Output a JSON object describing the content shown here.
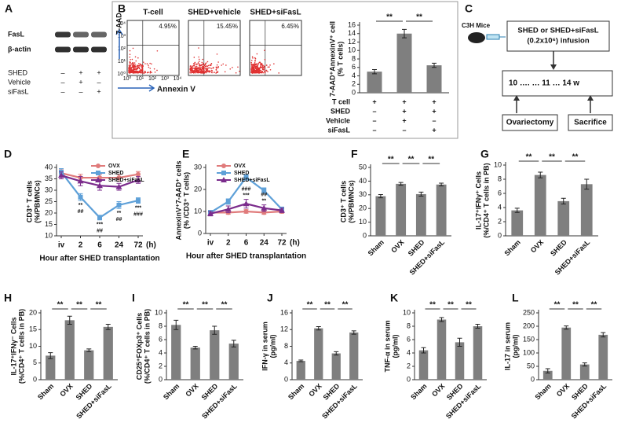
{
  "blot": {
    "panel": "A",
    "bands": [
      "FasL",
      "β-actin"
    ],
    "conditions": [
      {
        "name": "SHED",
        "signs": [
          "–",
          "+",
          "+"
        ]
      },
      {
        "name": "Vehicle",
        "signs": [
          "–",
          "+",
          "–"
        ]
      },
      {
        "name": "siFasL",
        "signs": [
          "–",
          "–",
          "+"
        ]
      }
    ]
  },
  "flow": {
    "panel": "B",
    "ylabel": "7-AAD",
    "xlabel": "Annexin V",
    "ticks": [
      "10⁰",
      "10¹",
      "10²",
      "10³",
      "10⁴"
    ],
    "plots": [
      {
        "title": "T-cell",
        "percent": "4.95%"
      },
      {
        "title": "SHED+vehicle",
        "percent": "15.45%"
      },
      {
        "title": "SHED+siFasL",
        "percent": "6.45%"
      }
    ]
  },
  "diagram": {
    "panel": "C",
    "mouse": "C3H Mice",
    "infusion": [
      "SHED or SHED+siFasL",
      "(0.2x10⁶) infusion"
    ],
    "timeline": "10 …. … 11 … 14 w",
    "events": [
      "Ovariectomy",
      "Sacrifice"
    ]
  },
  "chart_data": [
    {
      "type": "bar",
      "ylabel": [
        "7-AAD⁺AnnexinV⁺ cell",
        "(% T cells)"
      ],
      "values": [
        5,
        14,
        6.5
      ],
      "errors": [
        0.5,
        1,
        0.5
      ],
      "color": "#7f7f7f",
      "ylim": [
        0,
        16
      ],
      "yticks": [
        0,
        2,
        4,
        6,
        8,
        10,
        12,
        14,
        16
      ],
      "significance": [
        "**",
        "**"
      ],
      "conditions": [
        {
          "name": "T cell",
          "signs": [
            "+",
            "+",
            "+"
          ]
        },
        {
          "name": "SHED",
          "signs": [
            "–",
            "+",
            "+"
          ]
        },
        {
          "name": "Vehicle",
          "signs": [
            "–",
            "+",
            "–"
          ]
        },
        {
          "name": "siFasL",
          "signs": [
            "–",
            "–",
            "+"
          ]
        }
      ]
    },
    {
      "type": "line",
      "panel": "D",
      "ylabel": [
        "CD3⁺ T cells",
        "(%/PBMNCs)"
      ],
      "xlabel": "Hour after SHED transplantation",
      "xunit": "(h)",
      "categories": [
        "iv",
        "2",
        "6",
        "24",
        "72"
      ],
      "ylim": [
        10,
        40
      ],
      "yticks": [
        10,
        15,
        20,
        25,
        30,
        35,
        40
      ],
      "legend": "upper right",
      "point_label_side": "below",
      "series": [
        {
          "name": "OVX",
          "color": "#e07b7b",
          "marker": "circle",
          "values": [
            37.5,
            35.5,
            35.5,
            35.5,
            37
          ],
          "errors": [
            1.5,
            1.5,
            1.5,
            1.5,
            1.2
          ]
        },
        {
          "name": "SHED",
          "color": "#5ea0d8",
          "marker": "square",
          "values": [
            38,
            27,
            18,
            23.5,
            25.5
          ],
          "errors": [
            1.5,
            1.5,
            1,
            1.5,
            1.2
          ],
          "point_labels": [
            null,
            [
              "**",
              "##"
            ],
            [
              "***",
              "##"
            ],
            [
              "**",
              "##"
            ],
            [
              "***",
              "###"
            ]
          ]
        },
        {
          "name": "SHED+siFasL",
          "color": "#7b2c8c",
          "marker": "triangle",
          "values": [
            36.5,
            34,
            32,
            31.5,
            34.5
          ],
          "errors": [
            1.5,
            2,
            2,
            1.5,
            1.5
          ]
        }
      ]
    },
    {
      "type": "line",
      "panel": "E",
      "ylabel": [
        "AnnexinV⁺7-AAD⁺ cells",
        "(% /CD3⁺ T cells)"
      ],
      "xlabel": "Hour after SHED transplantation",
      "xunit": "(h)",
      "categories": [
        "iv",
        "2",
        "6",
        "24",
        "72"
      ],
      "ylim": [
        0,
        30
      ],
      "yticks": [
        0,
        10,
        20,
        30
      ],
      "legend": "upper left",
      "point_label_side": "above",
      "series": [
        {
          "name": "OVX",
          "color": "#e07b7b",
          "marker": "circle",
          "values": [
            9.5,
            9.5,
            10,
            9.5,
            10
          ],
          "errors": [
            0.8,
            0.8,
            0.8,
            0.8,
            0.8
          ]
        },
        {
          "name": "SHED",
          "color": "#5ea0d8",
          "marker": "square",
          "values": [
            9.5,
            14.5,
            25.5,
            19.5,
            11
          ],
          "errors": [
            1,
            1.2,
            1.2,
            1.2,
            1
          ]
        },
        {
          "name": "SHED+siFasL",
          "color": "#7b2c8c",
          "marker": "triangle",
          "values": [
            9,
            11,
            13.5,
            11.5,
            10.5
          ],
          "errors": [
            1,
            1.5,
            2,
            1.5,
            1
          ],
          "point_labels": [
            null,
            null,
            [
              "###",
              "***"
            ],
            [
              "##",
              "**"
            ],
            null
          ]
        }
      ]
    },
    {
      "type": "bar",
      "panel": "F",
      "ylabel": [
        "CD3⁺ T cells",
        "(%/PBMNCs)"
      ],
      "categories": [
        "Sham",
        "OVX",
        "SHED",
        "SHED+siFasL"
      ],
      "values": [
        29,
        38,
        30.5,
        37.5
      ],
      "errors": [
        1.2,
        1,
        1.5,
        1
      ],
      "color": "#7f7f7f",
      "ylim": [
        0,
        50
      ],
      "yticks": [
        0,
        10,
        20,
        30,
        40,
        50
      ],
      "significance": [
        "**",
        "**",
        "**"
      ]
    },
    {
      "type": "bar",
      "panel": "G",
      "ylabel": [
        "IL-17⁺IFNγ⁺ Cells",
        "(%/CD4⁺ T cells in PB)"
      ],
      "categories": [
        "Sham",
        "OVX",
        "SHED",
        "SHED+siFasL"
      ],
      "values": [
        3.6,
        8.6,
        4.9,
        7.3
      ],
      "errors": [
        0.3,
        0.4,
        0.4,
        0.7
      ],
      "color": "#7f7f7f",
      "ylim": [
        0,
        10
      ],
      "yticks": [
        0,
        2,
        4,
        6,
        8,
        10
      ],
      "significance": [
        "**",
        "**",
        "**"
      ]
    },
    {
      "type": "bar",
      "panel": "H",
      "ylabel": [
        "IL-17⁺IFNγ⁻ Cells",
        "(%/CD4⁺ T cells in PB)"
      ],
      "categories": [
        "Sham",
        "OVX",
        "SHED",
        "SHED+siFasL"
      ],
      "values": [
        7.2,
        17.8,
        8.8,
        15.8
      ],
      "errors": [
        0.9,
        1.2,
        0.4,
        0.8
      ],
      "color": "#7f7f7f",
      "ylim": [
        0,
        20
      ],
      "yticks": [
        0,
        5,
        10,
        15,
        20
      ],
      "significance": [
        "**",
        "**",
        "**"
      ]
    },
    {
      "type": "bar",
      "panel": "I",
      "ylabel": [
        "CD25⁺FOXp3⁺ Cells",
        "(%/CD4⁺ T cells in PB)"
      ],
      "categories": [
        "Sham",
        "OVX",
        "SHED",
        "SHED+siFasL"
      ],
      "values": [
        8.2,
        4.8,
        7.4,
        5.4
      ],
      "errors": [
        0.7,
        0.2,
        0.6,
        0.5
      ],
      "color": "#7f7f7f",
      "ylim": [
        0,
        10
      ],
      "yticks": [
        0,
        2,
        4,
        6,
        8,
        10
      ],
      "significance": [
        "**",
        "**",
        "**"
      ]
    },
    {
      "type": "bar",
      "panel": "J",
      "ylabel": [
        "IFN-γ in serum",
        "(pg/ml)"
      ],
      "categories": [
        "Sham",
        "OVX",
        "SHED",
        "SHED+siFasL"
      ],
      "values": [
        4.5,
        12.3,
        6.3,
        11.3
      ],
      "errors": [
        0.2,
        0.4,
        0.4,
        0.4
      ],
      "color": "#7f7f7f",
      "ylim": [
        0,
        16
      ],
      "yticks": [
        0,
        4,
        8,
        12,
        16
      ],
      "significance": [
        "**",
        "**",
        "**"
      ]
    },
    {
      "type": "bar",
      "panel": "K",
      "ylabel": [
        "TNF-α in serum",
        "(pg/ml)"
      ],
      "categories": [
        "Sham",
        "OVX",
        "SHED",
        "SHED+siFasL"
      ],
      "values": [
        4.4,
        9,
        5.6,
        8
      ],
      "errors": [
        0.4,
        0.3,
        0.6,
        0.3
      ],
      "color": "#7f7f7f",
      "ylim": [
        0,
        10
      ],
      "yticks": [
        0,
        2,
        4,
        6,
        8,
        10
      ],
      "significance": [
        "**",
        "**",
        "**"
      ]
    },
    {
      "type": "bar",
      "panel": "L",
      "ylabel": [
        "IL-17 in serum",
        "(pg/ml)"
      ],
      "categories": [
        "Sham",
        "OVX",
        "SHED",
        "SHED+siFasL"
      ],
      "values": [
        33,
        195,
        57,
        168
      ],
      "errors": [
        8,
        6,
        6,
        8
      ],
      "color": "#7f7f7f",
      "ylim": [
        0,
        250
      ],
      "yticks": [
        0,
        50,
        100,
        150,
        200,
        250
      ],
      "significance": [
        "**",
        "**",
        "**"
      ]
    }
  ]
}
